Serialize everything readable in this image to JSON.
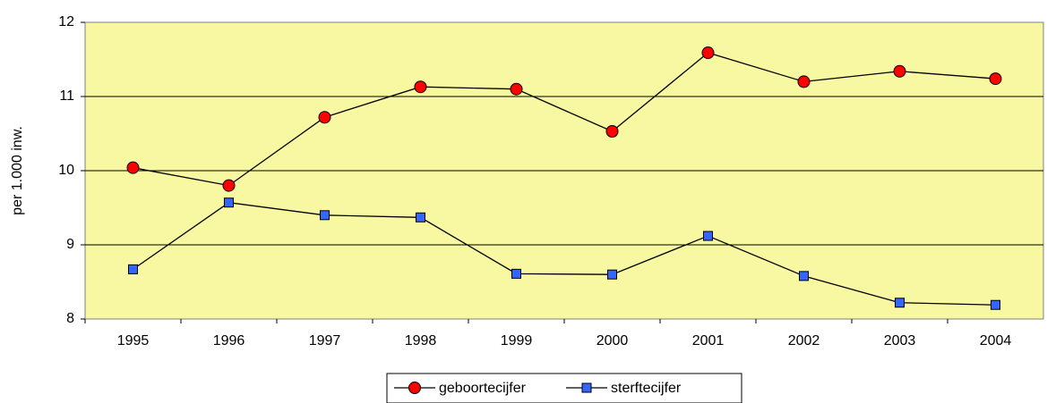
{
  "chart_data": {
    "type": "line",
    "categories": [
      "1995",
      "1996",
      "1997",
      "1998",
      "1999",
      "2000",
      "2001",
      "2002",
      "2003",
      "2004"
    ],
    "y_label": "per 1.000 inw.",
    "series": [
      {
        "name": "geboortecijfer",
        "color": "#ff0000",
        "marker": "circle",
        "values": [
          10.04,
          9.8,
          10.72,
          11.13,
          11.1,
          10.53,
          11.59,
          11.2,
          11.34,
          11.24
        ]
      },
      {
        "name": "sterftecijfer",
        "color": "#3366ff",
        "marker": "square",
        "values": [
          8.67,
          9.57,
          9.4,
          9.37,
          8.61,
          8.6,
          9.12,
          8.58,
          8.22,
          8.19
        ]
      }
    ],
    "ylim": [
      8,
      12
    ],
    "yticks": [
      8,
      9,
      10,
      11,
      12
    ],
    "grid": true,
    "legend": "bottom"
  }
}
